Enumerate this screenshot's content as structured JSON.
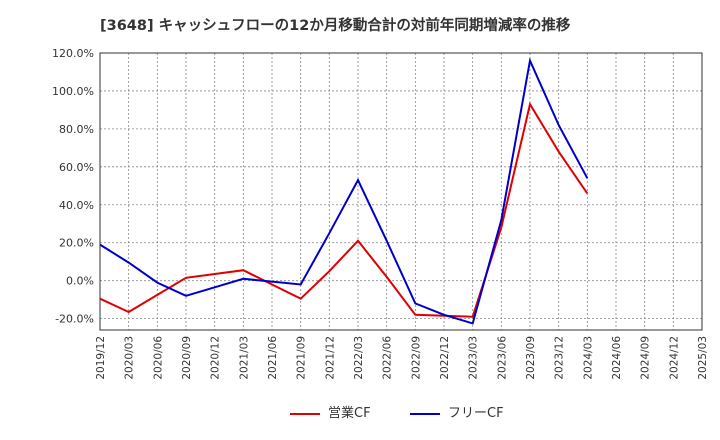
{
  "chart_data": {
    "type": "line",
    "title": "[3648]  キャッシュフローの12か月移動合計の対前年同期増減率の推移",
    "xlabel": "",
    "ylabel": "",
    "ylim": [
      -26,
      120
    ],
    "yticks": [
      -20,
      0,
      20,
      40,
      60,
      80,
      100,
      120
    ],
    "ytick_labels": [
      "-20.0%",
      "0.0%",
      "20.0%",
      "40.0%",
      "60.0%",
      "80.0%",
      "100.0%",
      "120.0%"
    ],
    "categories": [
      "2019/12",
      "2020/03",
      "2020/06",
      "2020/09",
      "2020/12",
      "2021/03",
      "2021/06",
      "2021/09",
      "2021/12",
      "2022/03",
      "2022/06",
      "2022/09",
      "2022/12",
      "2023/03",
      "2023/06",
      "2023/09",
      "2023/12",
      "2024/03",
      "2024/06",
      "2024/09",
      "2024/12",
      "2025/03"
    ],
    "series": [
      {
        "name": "営業CF",
        "color": "#e00000",
        "values": [
          -9.5,
          -16.5,
          -7.5,
          1.5,
          3.5,
          5.5,
          -2,
          -9.5,
          5,
          21,
          2,
          -18,
          -18.5,
          -19,
          28,
          93,
          68,
          46,
          null,
          null,
          null,
          null
        ]
      },
      {
        "name": "フリーCF",
        "color": "#0000cc",
        "values": [
          19,
          9.5,
          -1,
          -8,
          -3.5,
          1,
          -0.5,
          -2,
          25,
          53,
          21,
          -12,
          -18,
          -22.5,
          32,
          116,
          82,
          54,
          null,
          null,
          null,
          null
        ]
      }
    ],
    "grid": true,
    "legend_position": "bottom-center"
  }
}
